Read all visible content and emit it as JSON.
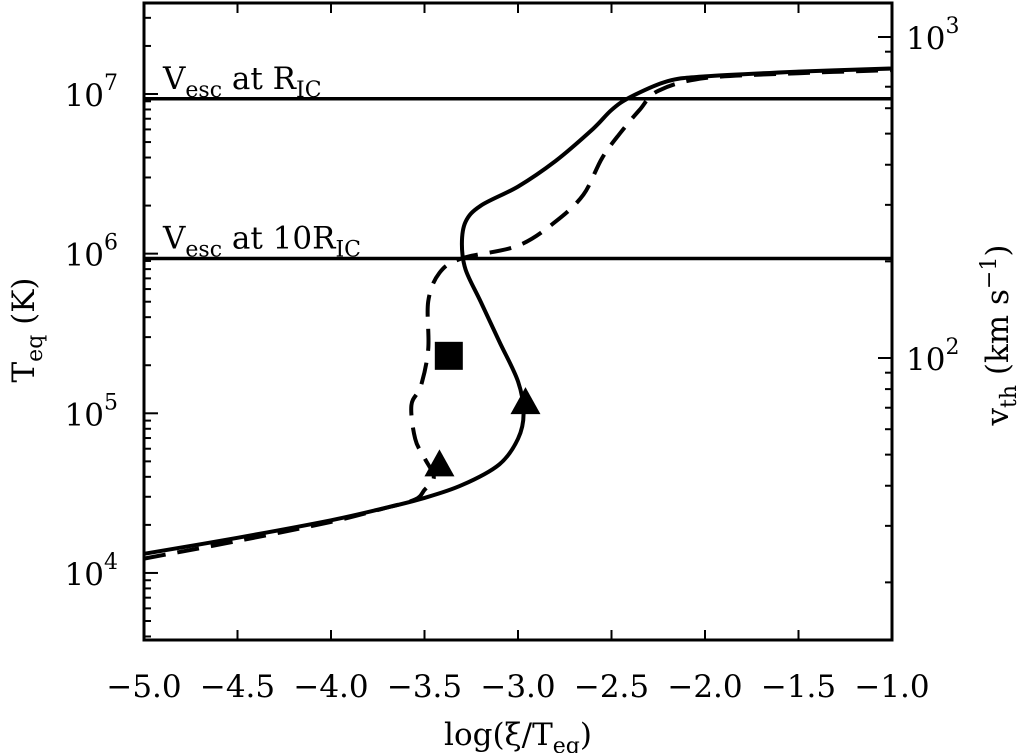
{
  "chart_data": {
    "type": "line",
    "title": "",
    "x_axis": {
      "label_main": "log(ξ/T",
      "label_sub": "eq",
      "label_end": ")",
      "range": [
        -5.0,
        -1.0
      ],
      "ticks": [
        -5.0,
        -4.5,
        -4.0,
        -3.5,
        -3.0,
        -2.5,
        -2.0,
        -1.5,
        -1.0
      ],
      "tick_labels": [
        "−5.0",
        "−4.5",
        "−4.0",
        "−3.5",
        "−3.0",
        "−2.5",
        "−2.0",
        "−1.5",
        "−1.0"
      ]
    },
    "y_axis_left": {
      "label_main": "T",
      "label_sub": "eq",
      "label_end": " (K)",
      "scale": "log",
      "range_log10": [
        3.58,
        7.57
      ],
      "ticks": [
        {
          "base": "10",
          "exp": "4",
          "log10": 4
        },
        {
          "base": "10",
          "exp": "5",
          "log10": 5
        },
        {
          "base": "10",
          "exp": "6",
          "log10": 6
        },
        {
          "base": "10",
          "exp": "7",
          "log10": 7
        }
      ]
    },
    "y_axis_right": {
      "label_main": "v",
      "label_sub": "th",
      "label_end": " (km s",
      "label_sup": "−1",
      "label_close": ")",
      "scale": "log",
      "ticks": [
        {
          "base": "10",
          "exp": "2",
          "log10": 2
        },
        {
          "base": "10",
          "exp": "3",
          "log10": 3
        }
      ]
    },
    "series": [
      {
        "style": "solid",
        "x": [
          -5.0,
          -4.5,
          -4.0,
          -3.7,
          -3.5,
          -3.3,
          -3.1,
          -3.0,
          -2.97,
          -3.0,
          -3.1,
          -3.2,
          -3.28,
          -3.3,
          -3.28,
          -3.2,
          -3.0,
          -2.8,
          -2.6,
          -2.5,
          -2.4,
          -2.2,
          -2.0,
          -1.5,
          -1.0
        ],
        "y": [
          4.12,
          4.22,
          4.33,
          4.41,
          4.47,
          4.55,
          4.68,
          4.84,
          5.0,
          5.2,
          5.45,
          5.7,
          5.9,
          6.06,
          6.2,
          6.3,
          6.42,
          6.58,
          6.78,
          6.9,
          6.98,
          7.08,
          7.11,
          7.14,
          7.16
        ]
      },
      {
        "style": "dashed",
        "x": [
          -5.0,
          -4.5,
          -4.0,
          -3.7,
          -3.55,
          -3.5,
          -3.45,
          -3.5,
          -3.55,
          -3.57,
          -3.52,
          -3.48,
          -3.48,
          -3.42,
          -3.3,
          -3.0,
          -2.8,
          -2.65,
          -2.55,
          -2.45,
          -2.35,
          -2.25,
          -2.0,
          -1.5,
          -1.0
        ],
        "y": [
          4.09,
          4.2,
          4.32,
          4.41,
          4.46,
          4.52,
          4.6,
          4.72,
          4.84,
          5.05,
          5.17,
          5.4,
          5.7,
          5.88,
          5.97,
          6.05,
          6.2,
          6.37,
          6.6,
          6.76,
          6.9,
          7.02,
          7.1,
          7.13,
          7.15
        ]
      }
    ],
    "horizontal_lines": [
      {
        "log10": 6.97,
        "text_main": "V",
        "text_sub": "esc",
        "text_mid": " at R",
        "text_sub2": "IC"
      },
      {
        "log10": 5.97,
        "text_main": "V",
        "text_sub": "esc",
        "text_mid": " at 10R",
        "text_sub2": "IC"
      }
    ],
    "markers": [
      {
        "shape": "triangle",
        "x": -2.96,
        "y": 5.07
      },
      {
        "shape": "triangle",
        "x": -3.42,
        "y": 4.68
      },
      {
        "shape": "square",
        "x": -3.37,
        "y": 5.36
      }
    ]
  }
}
